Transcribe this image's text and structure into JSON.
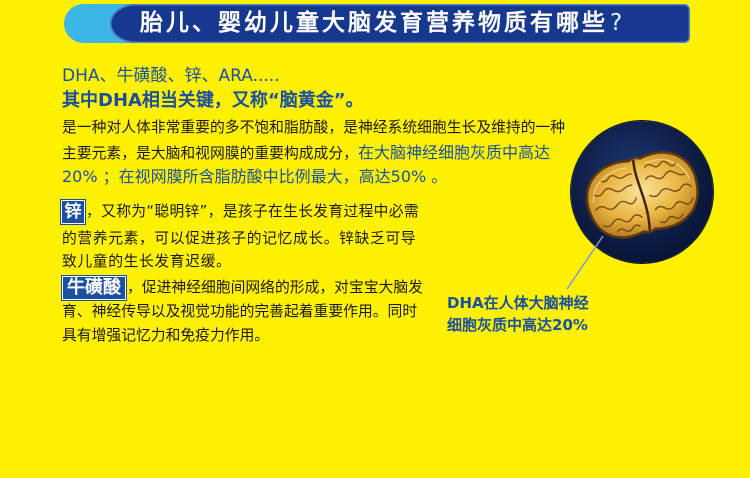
{
  "colors": {
    "background": "#FFF100",
    "accent_blue": "#1B4F9F",
    "header_blue": "#17388F",
    "header_cyan": "#3DB5E6",
    "body_text": "#1A1A1A"
  },
  "header": {
    "title": "胎儿、婴幼儿童大脑发育营养物质有哪些",
    "question_mark": "?"
  },
  "intro": {
    "nutrients": "DHA、牛磺酸、锌、ARA.....",
    "dha_key": "其中DHA相当关键，又称“脑黄金”。"
  },
  "dha": {
    "line1": "是一种对人体非常重要的多不饱和脂肪酸，是神经系统细胞生长及维持的一种",
    "line2_plain": "主要元素，是大脑和视网膜的重要构成成分，",
    "line2_highlight": "在大脑神经细胞灰质中高达",
    "line3_highlight": "20% ；在视网膜所含脂肪酸中比例最大，高达50% 。"
  },
  "zinc": {
    "badge": "锌",
    "lines": [
      "，又称为“聪明锌”，是孩子在生长发育过程中必需",
      "的营养元素，可以促进孩子的记忆成长。锌缺乏可导",
      "致儿童的生长发育迟缓。"
    ]
  },
  "taurine": {
    "badge": "牛磺酸",
    "lines": [
      "，促进神经细胞间网络的形成，对宝宝大脑发",
      "育、神经传导以及视觉功能的完善起着重要作用。同时",
      "具有增强记忆力和免疫力作用。"
    ]
  },
  "illustration": {
    "icon": "brain-cross-section-icon"
  },
  "callout": {
    "lines": [
      "DHA在人体大脑神经",
      "细胞灰质中高达20%"
    ]
  }
}
